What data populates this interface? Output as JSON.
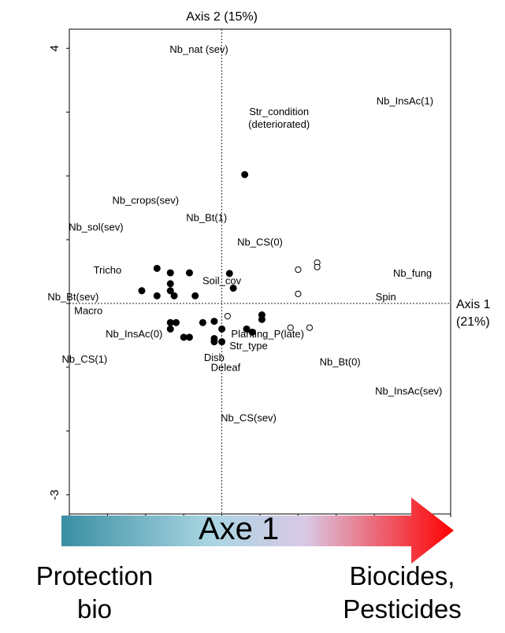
{
  "chart_data": {
    "type": "scatter",
    "title": "",
    "xlabel": "Axis 1 (21%)",
    "ylabel": "Axis 2 (15%)",
    "xlabel_lines": [
      "Axis 1",
      "(21%)"
    ],
    "xlim": [
      -4,
      6
    ],
    "ylim": [
      -3.3,
      4.3
    ],
    "y_tick_labels": [
      "4",
      "-3"
    ],
    "grid": false,
    "series": [
      {
        "marker": "filled-circle",
        "points": [
          [
            0.6,
            2.02
          ],
          [
            -1.7,
            0.55
          ],
          [
            -1.35,
            0.48
          ],
          [
            -0.85,
            0.48
          ],
          [
            0.2,
            0.47
          ],
          [
            -1.35,
            0.31
          ],
          [
            0.3,
            0.24
          ],
          [
            -2.1,
            0.2
          ],
          [
            -1.35,
            0.2
          ],
          [
            -1.7,
            0.12
          ],
          [
            -1.25,
            0.12
          ],
          [
            -0.7,
            0.12
          ],
          [
            1.05,
            -0.18
          ],
          [
            1.05,
            -0.25
          ],
          [
            -0.2,
            -0.28
          ],
          [
            -1.35,
            -0.3
          ],
          [
            -1.2,
            -0.3
          ],
          [
            -0.5,
            -0.3
          ],
          [
            -1.35,
            -0.4
          ],
          [
            0,
            -0.4
          ],
          [
            0.65,
            -0.4
          ],
          [
            0.8,
            -0.45
          ],
          [
            -1.0,
            -0.53
          ],
          [
            -0.85,
            -0.53
          ],
          [
            -0.2,
            -0.55
          ],
          [
            -0.2,
            -0.6
          ],
          [
            0,
            -0.6
          ]
        ]
      },
      {
        "marker": "open-circle",
        "points": [
          [
            2.5,
            0.64
          ],
          [
            2.5,
            0.57
          ],
          [
            2.0,
            0.53
          ],
          [
            2.0,
            0.15
          ],
          [
            0.15,
            -0.2
          ],
          [
            1.8,
            -0.38
          ],
          [
            2.3,
            -0.38
          ]
        ]
      }
    ],
    "annotations": [
      {
        "lines": [
          "Nb_nat (sev)"
        ],
        "x": -0.6,
        "y": 3.93
      },
      {
        "lines": [
          "Nb_InsAc(1)"
        ],
        "x": 4.8,
        "y": 3.12
      },
      {
        "lines": [
          "Str_condition",
          "(deteriorated)"
        ],
        "x": 1.5,
        "y": 2.95
      },
      {
        "lines": [
          "Nb_crops(sev)"
        ],
        "x": -2.0,
        "y": 1.56
      },
      {
        "lines": [
          "Nb_Bt(1)"
        ],
        "x": -0.4,
        "y": 1.29
      },
      {
        "lines": [
          "Nb_sol(sev)"
        ],
        "x": -3.3,
        "y": 1.14
      },
      {
        "lines": [
          "Nb_CS(0)"
        ],
        "x": 1.0,
        "y": 0.91
      },
      {
        "lines": [
          "Tricho"
        ],
        "x": -3.0,
        "y": 0.47
      },
      {
        "lines": [
          "Nb_fung"
        ],
        "x": 5.0,
        "y": 0.42
      },
      {
        "lines": [
          "Soil_cov"
        ],
        "x": 0,
        "y": 0.3
      },
      {
        "lines": [
          "Nb_Bt(sev)"
        ],
        "x": -3.9,
        "y": 0.05
      },
      {
        "lines": [
          "Spin"
        ],
        "x": 4.3,
        "y": 0.05
      },
      {
        "lines": [
          "Macro"
        ],
        "x": -3.5,
        "y": -0.17
      },
      {
        "lines": [
          "Nb_InsAc(0)"
        ],
        "x": -2.3,
        "y": -0.53
      },
      {
        "lines": [
          "Planting_P(late)"
        ],
        "x": 1.2,
        "y": -0.53
      },
      {
        "lines": [
          "Str_type"
        ],
        "x": 0.7,
        "y": -0.72
      },
      {
        "lines": [
          "Nb_CS(1)"
        ],
        "x": -3.6,
        "y": -0.93
      },
      {
        "lines": [
          "Disb"
        ],
        "x": -0.2,
        "y": -0.9
      },
      {
        "lines": [
          "Nb_Bt(0)"
        ],
        "x": 3.1,
        "y": -0.97
      },
      {
        "lines": [
          "Deleaf"
        ],
        "x": 0.1,
        "y": -1.06
      },
      {
        "lines": [
          "Nb_InsAc(sev)"
        ],
        "x": 4.9,
        "y": -1.43
      },
      {
        "lines": [
          "Nb_CS(sev)"
        ],
        "x": 0.7,
        "y": -1.85
      }
    ]
  },
  "arrow": {
    "label": "Axe 1",
    "gradient_colors": [
      "#3a8fa3",
      "#a9d5e2",
      "#d9c9e6",
      "#ff0000"
    ]
  },
  "captions": {
    "left_lines": [
      "Protection",
      "bio"
    ],
    "right_lines": [
      "Biocides,",
      "Pesticides"
    ]
  }
}
